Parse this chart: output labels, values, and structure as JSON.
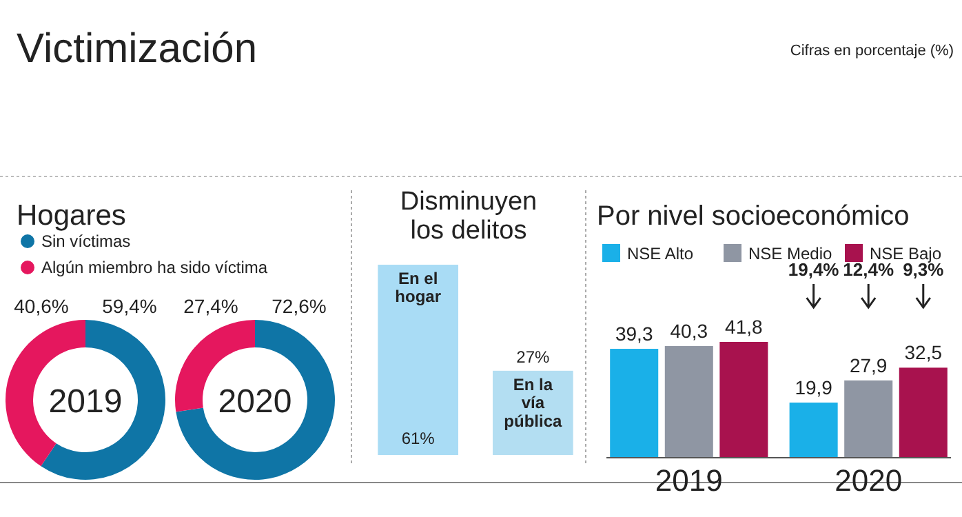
{
  "chart_data": [
    {
      "type": "other",
      "title": "Victimización",
      "subtitle": "Cifras en porcentaje (%)"
    },
    {
      "type": "donut",
      "title": "Hogares",
      "categories": [
        "Sin víctimas",
        "Algún miembro ha sido víctima"
      ],
      "values": [
        59.4,
        40.6
      ],
      "colors": [
        "#0f75a6",
        "#e5175e"
      ],
      "value_labels": [
        "59,4%",
        "40,6%"
      ],
      "annotations": [
        "2019"
      ],
      "legend": "top"
    },
    {
      "type": "donut",
      "categories": [
        null,
        null
      ],
      "values": [
        72.6,
        27.4
      ],
      "colors": [
        "#0f75a6",
        "#e5175e"
      ],
      "value_labels": [
        "72,6%",
        "27,4%"
      ],
      "annotations": [
        "2020"
      ]
    },
    {
      "type": "bar",
      "title": "Disminuyen los delitos",
      "categories": [
        "En el hogar",
        "En la vía pública"
      ],
      "values": [
        61,
        27
      ],
      "colors": [
        "#a9dcf5",
        "#b3def2"
      ],
      "value_labels": [
        "61%",
        "27%"
      ]
    },
    {
      "type": "bar",
      "title": "Por nivel socioeconómico",
      "categories": [
        "2019",
        "2020"
      ],
      "legend": "top",
      "annotations": [
        "19,4%",
        "12,4%",
        "9,3%"
      ],
      "series": [
        {
          "name": "NSE Alto",
          "color": "#1ab0e8",
          "values": [
            39.3,
            19.9
          ],
          "value_labels": [
            "39,3",
            "19,9"
          ]
        },
        {
          "name": "NSE Medio",
          "color": "#8f96a3",
          "values": [
            40.3,
            27.9
          ],
          "value_labels": [
            "40,3",
            "27,9"
          ]
        },
        {
          "name": "NSE Bajo",
          "color": "#a8124e",
          "values": [
            41.8,
            32.5
          ],
          "value_labels": [
            "41,8",
            "32,5"
          ]
        }
      ]
    }
  ]
}
